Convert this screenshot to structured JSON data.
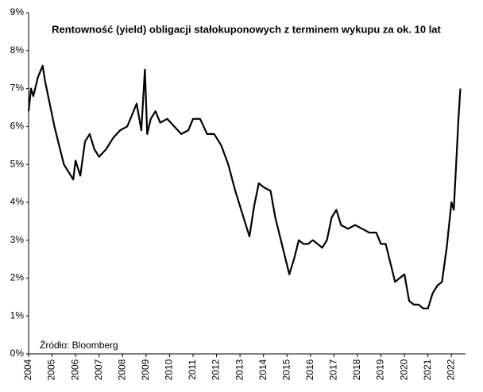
{
  "chart_data": {
    "type": "line",
    "title": "Rentowność (yield) obligacji stałokuponowych z terminem wykupu za ok. 10 lat",
    "annotation": "Źródło: Bloomberg",
    "color": "#000000",
    "xlim": [
      2004,
      2022.6
    ],
    "xticks": [
      2004,
      2005,
      2006,
      2007,
      2008,
      2009,
      2010,
      2011,
      2012,
      2013,
      2014,
      2015,
      2016,
      2017,
      2018,
      2019,
      2020,
      2021,
      2022
    ],
    "ylim": [
      0,
      9
    ],
    "yticks": [
      {
        "value": 0,
        "label": "0%"
      },
      {
        "value": 1,
        "label": "1%"
      },
      {
        "value": 2,
        "label": "2%"
      },
      {
        "value": 3,
        "label": "3%"
      },
      {
        "value": 4,
        "label": "4%"
      },
      {
        "value": 5,
        "label": "5%"
      },
      {
        "value": 6,
        "label": "6%"
      },
      {
        "value": 7,
        "label": "7%"
      },
      {
        "value": 8,
        "label": "8%"
      },
      {
        "value": 9,
        "label": "9%"
      }
    ],
    "grid": false,
    "x": [
      2004.0,
      2004.1,
      2004.2,
      2004.4,
      2004.6,
      2004.7,
      2004.9,
      2005.1,
      2005.3,
      2005.5,
      2005.7,
      2005.9,
      2006.0,
      2006.2,
      2006.4,
      2006.6,
      2006.8,
      2007.0,
      2007.3,
      2007.6,
      2007.9,
      2008.2,
      2008.4,
      2008.6,
      2008.8,
      2008.95,
      2009.05,
      2009.2,
      2009.4,
      2009.6,
      2009.9,
      2010.2,
      2010.5,
      2010.8,
      2011.0,
      2011.3,
      2011.6,
      2011.9,
      2012.2,
      2012.5,
      2012.8,
      2013.0,
      2013.2,
      2013.4,
      2013.6,
      2013.8,
      2014.0,
      2014.3,
      2014.5,
      2014.7,
      2014.9,
      2015.1,
      2015.3,
      2015.5,
      2015.7,
      2015.9,
      2016.1,
      2016.3,
      2016.5,
      2016.7,
      2016.9,
      2017.1,
      2017.3,
      2017.6,
      2017.9,
      2018.2,
      2018.5,
      2018.8,
      2019.0,
      2019.2,
      2019.4,
      2019.6,
      2019.8,
      2020.0,
      2020.2,
      2020.4,
      2020.6,
      2020.8,
      2021.0,
      2021.2,
      2021.4,
      2021.6,
      2021.8,
      2022.0,
      2022.1,
      2022.2,
      2022.3,
      2022.38
    ],
    "values": [
      6.4,
      7.0,
      6.8,
      7.3,
      7.6,
      7.2,
      6.6,
      6.0,
      5.5,
      5.0,
      4.8,
      4.6,
      5.1,
      4.7,
      5.6,
      5.8,
      5.4,
      5.2,
      5.4,
      5.7,
      5.9,
      6.0,
      6.3,
      6.6,
      5.9,
      7.5,
      5.8,
      6.2,
      6.4,
      6.1,
      6.2,
      6.0,
      5.8,
      5.9,
      6.2,
      6.2,
      5.8,
      5.8,
      5.5,
      5.0,
      4.3,
      3.9,
      3.5,
      3.1,
      3.9,
      4.5,
      4.4,
      4.3,
      3.6,
      3.1,
      2.6,
      2.1,
      2.5,
      3.0,
      2.9,
      2.9,
      3.0,
      2.9,
      2.8,
      3.0,
      3.6,
      3.8,
      3.4,
      3.3,
      3.4,
      3.3,
      3.2,
      3.2,
      2.9,
      2.9,
      2.4,
      1.9,
      2.0,
      2.1,
      1.4,
      1.3,
      1.3,
      1.2,
      1.2,
      1.6,
      1.8,
      1.9,
      2.8,
      4.0,
      3.8,
      5.0,
      6.2,
      7.0
    ]
  }
}
